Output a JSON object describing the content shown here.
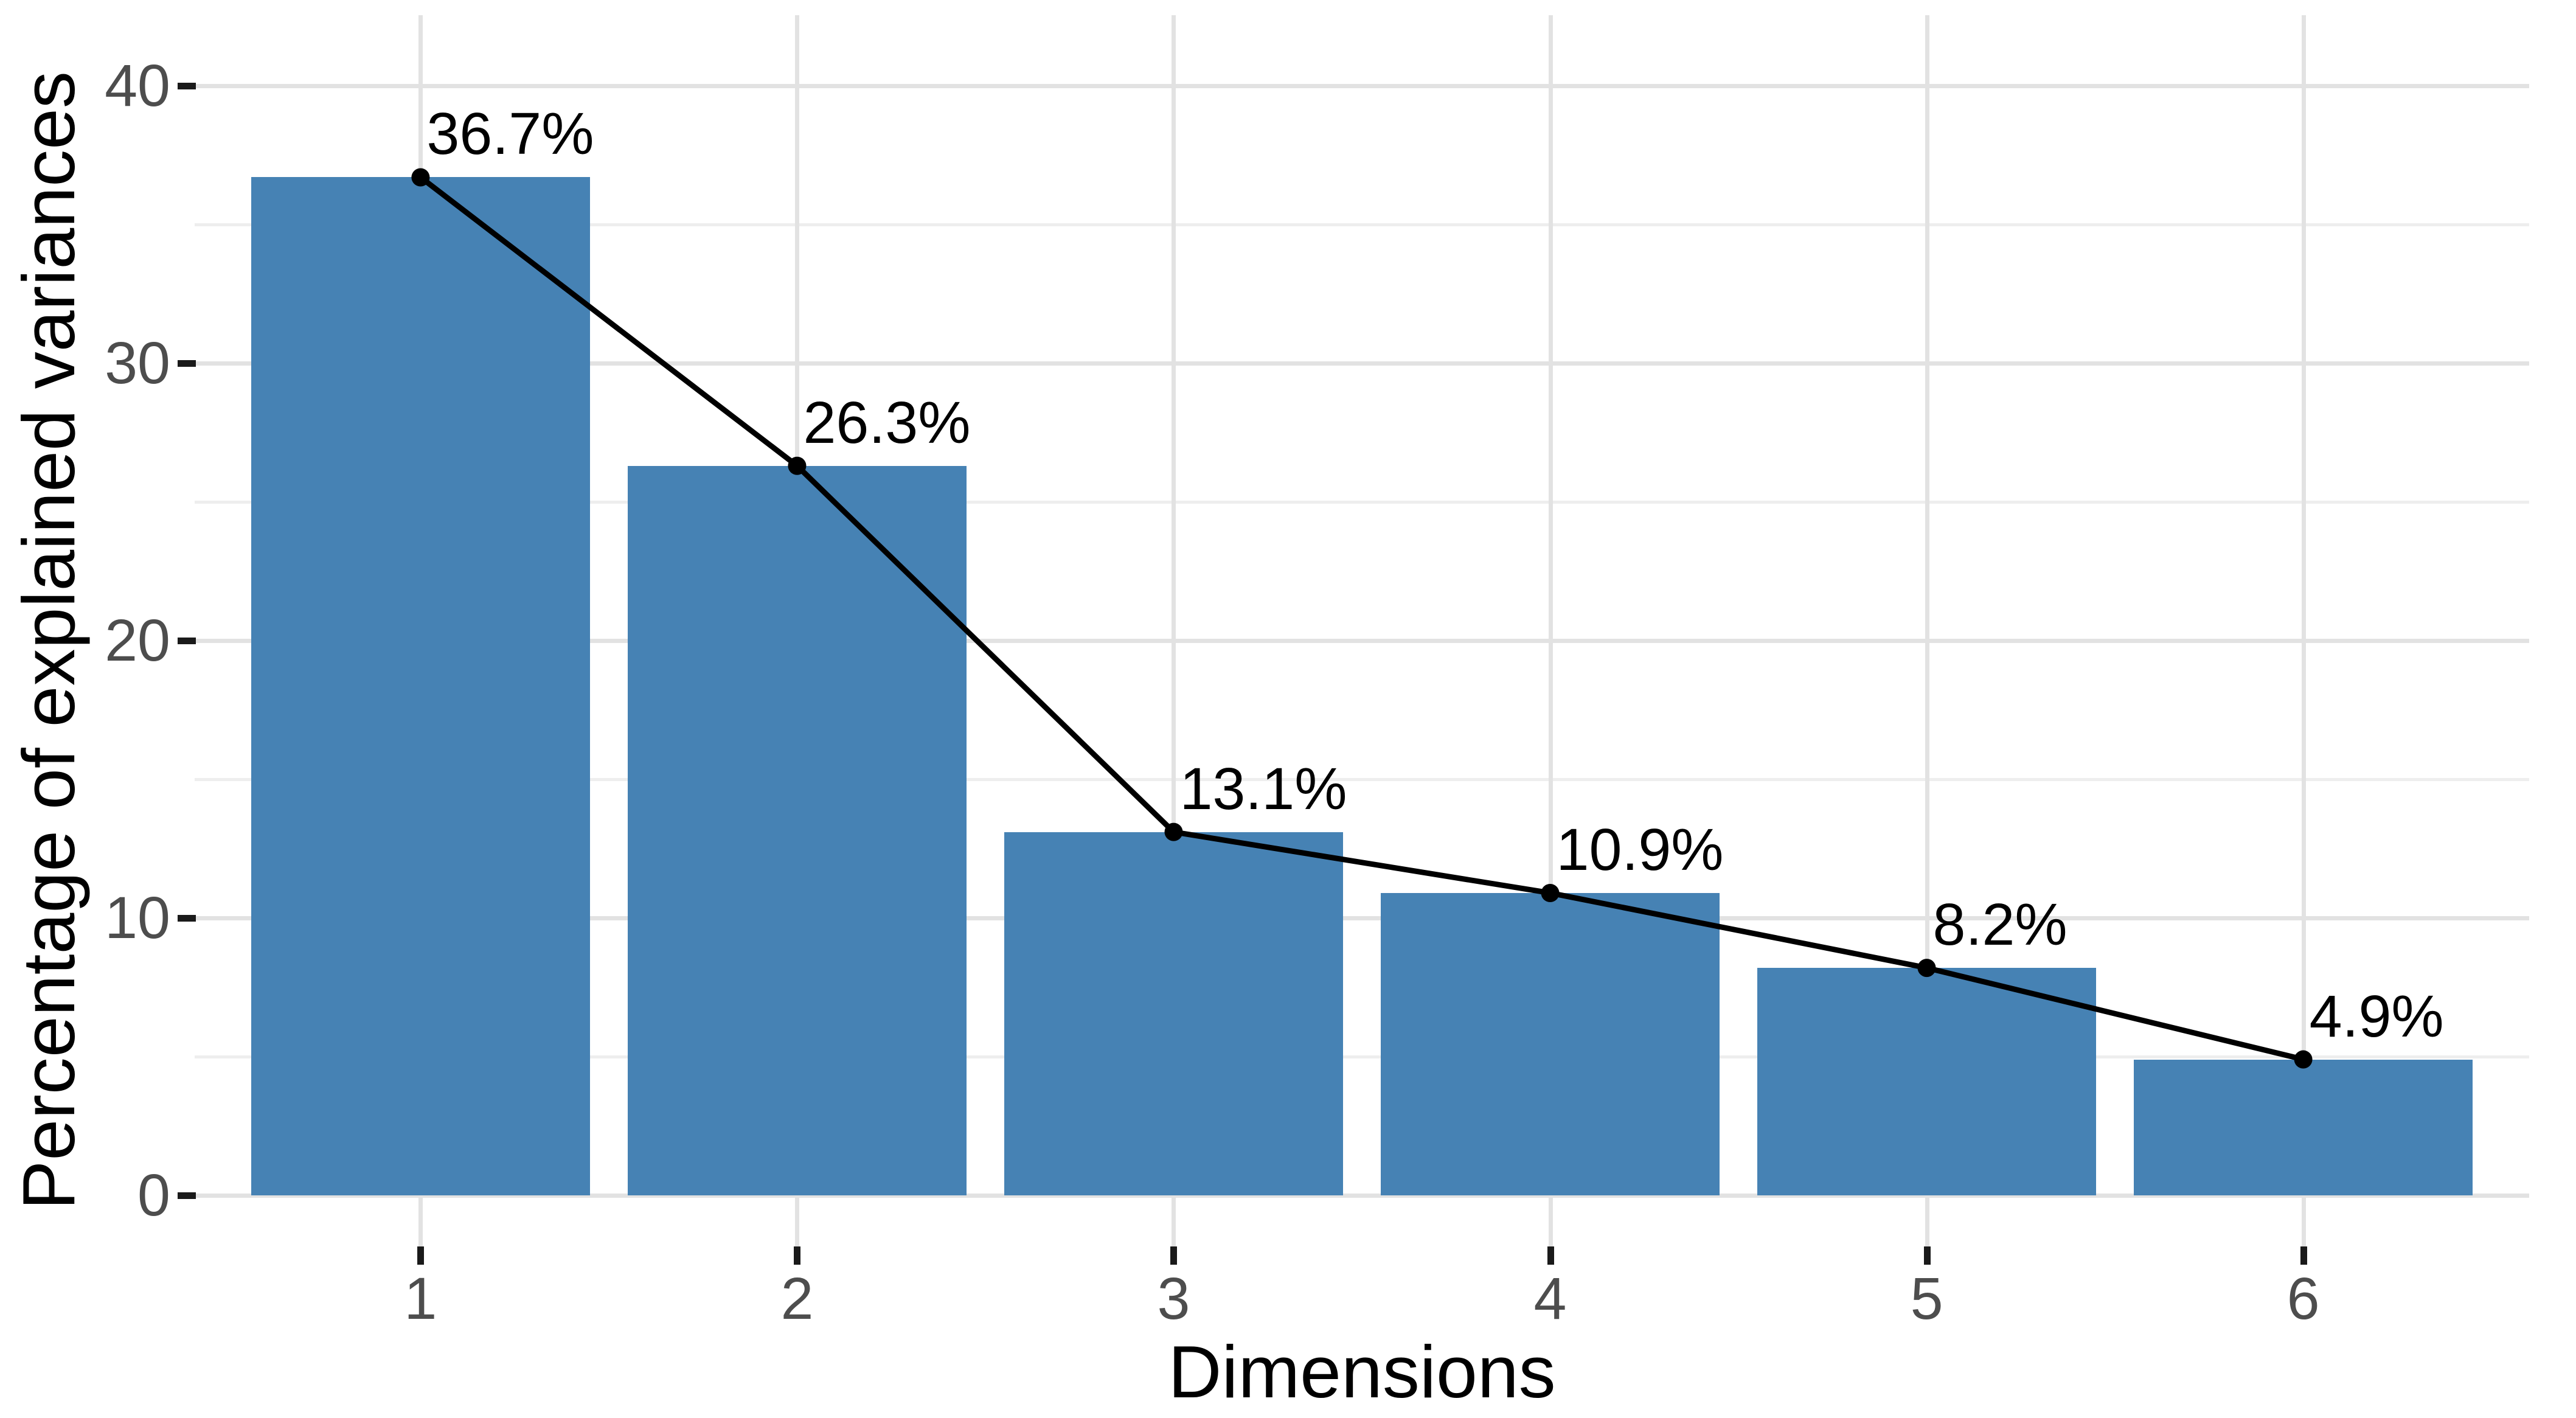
{
  "figure": {
    "background": "#ffffff"
  },
  "x_axis": {
    "title": "Dimensions",
    "tick_labels": [
      "1",
      "2",
      "3",
      "4",
      "5",
      "6"
    ]
  },
  "y_axis": {
    "title": "Percentage of explained variances",
    "tick_labels": [
      "0",
      "10",
      "20",
      "30",
      "40"
    ],
    "tick_values": [
      0,
      10,
      20,
      30,
      40
    ],
    "minor_gridline_values": [
      5,
      15,
      25,
      35
    ]
  },
  "chart_data": {
    "type": "bar",
    "overlay": "line",
    "title": "",
    "xlabel": "Dimensions",
    "ylabel": "Percentage of explained variances",
    "categories": [
      "1",
      "2",
      "3",
      "4",
      "5",
      "6"
    ],
    "values": [
      36.7,
      26.3,
      13.1,
      10.9,
      8.2,
      4.9
    ],
    "point_labels": [
      "36.7%",
      "26.3%",
      "13.1%",
      "10.9%",
      "8.2%",
      "4.9%"
    ],
    "y_major_ticks": [
      0,
      10,
      20,
      30,
      40
    ],
    "y_minor_gridlines": [
      5,
      15,
      25,
      35
    ],
    "ylim": [
      0,
      42
    ],
    "grid": true,
    "legend": false,
    "colors": {
      "bar_fill": "#4682B4",
      "line": "#000000",
      "point": "#000000",
      "grid_major": "#e2e2e2",
      "grid_minor": "#eeeeee",
      "tick_mark": "#1a1a1a",
      "tick_text": "#4d4d4d",
      "axis_title_text": "#000000"
    }
  }
}
